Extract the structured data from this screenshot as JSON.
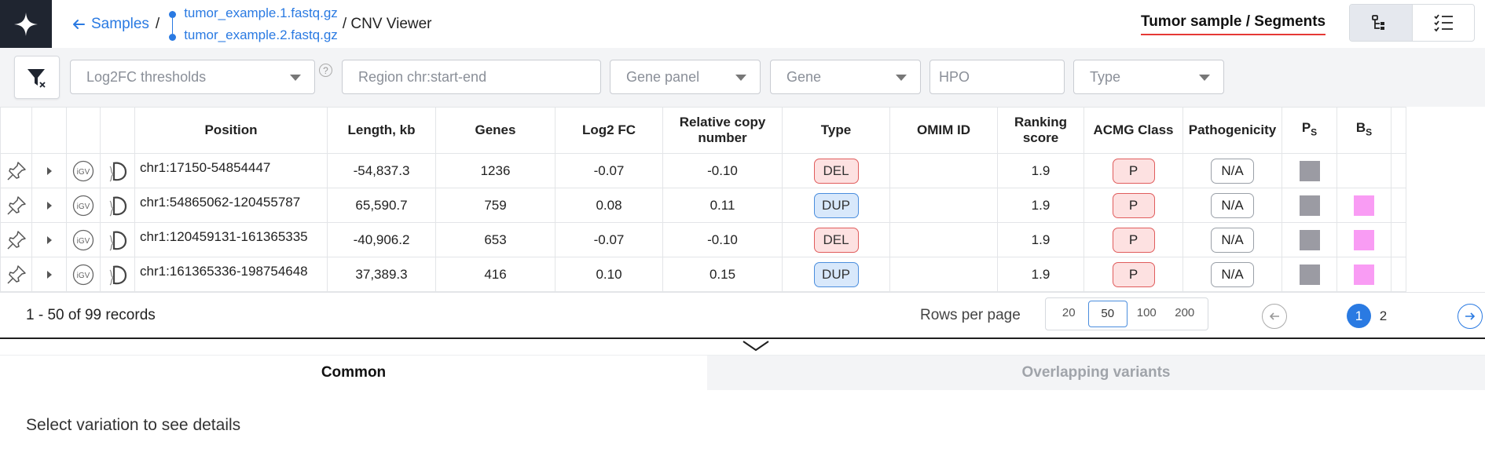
{
  "header": {
    "back_label": "Samples",
    "sep": "/",
    "files": [
      "tumor_example.1.fastq.gz",
      "tumor_example.2.fastq.gz"
    ],
    "viewer_title": "/ CNV Viewer",
    "sample_title": "Tumor sample / Segments"
  },
  "filters": {
    "log2fc": "Log2FC thresholds",
    "region": "Region chr:start-end",
    "gene_panel": "Gene panel",
    "gene": "Gene",
    "hpo": "HPO",
    "type": "Type",
    "help": "?"
  },
  "table": {
    "columns": {
      "position": "Position",
      "length": "Length, kb",
      "genes": "Genes",
      "log2fc": "Log2 FC",
      "rcn": "Relative copy number",
      "type": "Type",
      "omim": "OMIM ID",
      "ranking": "Ranking score",
      "acmg": "ACMG Class",
      "patho": "Pathogenicity",
      "ps_main": "P",
      "ps_sub": "S",
      "bs_main": "B",
      "bs_sub": "S"
    },
    "rows": [
      {
        "position": "chr1:17150-54854447",
        "length": "-54,837.3",
        "genes": "1236",
        "log2fc": "-0.07",
        "rcn": "-0.10",
        "type": "DEL",
        "omim": "",
        "ranking": "1.9",
        "acmg": "P",
        "patho": "N/A",
        "ps": true,
        "bs": false
      },
      {
        "position": "chr1:54865062-120455787",
        "length": "65,590.7",
        "genes": "759",
        "log2fc": "0.08",
        "rcn": "0.11",
        "type": "DUP",
        "omim": "",
        "ranking": "1.9",
        "acmg": "P",
        "patho": "N/A",
        "ps": true,
        "bs": true
      },
      {
        "position": "chr1:120459131-161365335",
        "length": "-40,906.2",
        "genes": "653",
        "log2fc": "-0.07",
        "rcn": "-0.10",
        "type": "DEL",
        "omim": "",
        "ranking": "1.9",
        "acmg": "P",
        "patho": "N/A",
        "ps": true,
        "bs": true
      },
      {
        "position": "chr1:161365336-198754648",
        "length": "37,389.3",
        "genes": "416",
        "log2fc": "0.10",
        "rcn": "0.15",
        "type": "DUP",
        "omim": "",
        "ranking": "1.9",
        "acmg": "P",
        "patho": "N/A",
        "ps": true,
        "bs": true
      }
    ],
    "colors": {
      "del_bg": "#fde1e1",
      "dup_bg": "#d8e8fb",
      "ps": "#9b9ba3",
      "bs": "#f99cf4"
    }
  },
  "pager": {
    "records": "1 - 50 of 99 records",
    "rows_per_page_label": "Rows per page",
    "options": [
      "20",
      "50",
      "100",
      "200"
    ],
    "selected": "50",
    "pages": [
      "1",
      "2"
    ],
    "current_page": "1"
  },
  "details": {
    "tabs": [
      "Common",
      "Overlapping variants"
    ],
    "active_tab": "Common",
    "empty_message": "Select variation to see details"
  },
  "icons": [
    "sparkle-logo-icon",
    "arrow-left-icon",
    "filter-clear-icon",
    "tree-view-icon",
    "list-view-icon",
    "pin-icon",
    "expand-caret-icon",
    "igv-icon",
    "ucsc-icon",
    "chevron-down-icon",
    "arrow-left-circle-icon",
    "arrow-right-circle-icon"
  ],
  "accent": "#2a7ae2"
}
